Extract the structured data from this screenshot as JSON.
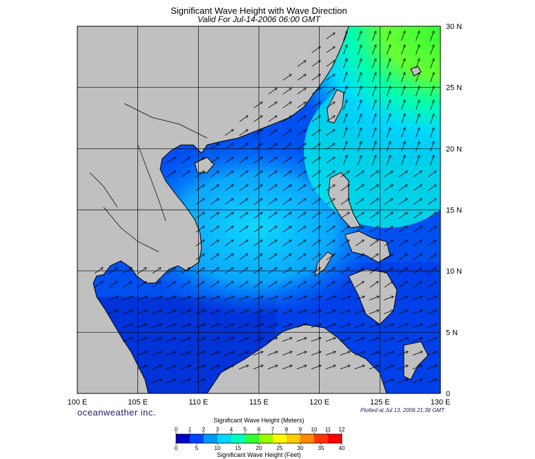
{
  "header": {
    "title": "Significant Wave Height with Wave Direction",
    "subtitle": "Valid For Jul-14-2006 06:00 GMT"
  },
  "map": {
    "lon_range": [
      100,
      130
    ],
    "lat_range": [
      0,
      30
    ],
    "lon_labels": [
      "100 E",
      "105 E",
      "110 E",
      "115 E",
      "120 E",
      "125 E",
      "130 E"
    ],
    "lat_labels": [
      "0",
      "5 N",
      "10 N",
      "15 N",
      "20 N",
      "25 N",
      "30 N"
    ],
    "gridlines": true,
    "land_color": "#c0c0c0",
    "coast_color": "#000000",
    "dominant_wave_direction": "southwest to northeast"
  },
  "footer": {
    "brand": "oceanweather inc.",
    "plotted": "Plotted at Jul 13, 2006 21:38 GMT"
  },
  "colorbar": {
    "title_top": "Significant Wave Height (Meters)",
    "title_bottom": "Significant Wave Height (Feet)",
    "meters_ticks": [
      "0",
      "1",
      "2",
      "3",
      "4",
      "5",
      "6",
      "7",
      "8",
      "9",
      "10",
      "11",
      "12"
    ],
    "feet_ticks": [
      "0",
      "5",
      "10",
      "15",
      "20",
      "25",
      "30",
      "35",
      "40"
    ],
    "colors": [
      "#0000c8",
      "#0044ff",
      "#0099ff",
      "#00d8ff",
      "#00ffb8",
      "#33ff33",
      "#99ff00",
      "#ffff00",
      "#ffcc00",
      "#ff8800",
      "#ff3300",
      "#ff0000"
    ]
  }
}
